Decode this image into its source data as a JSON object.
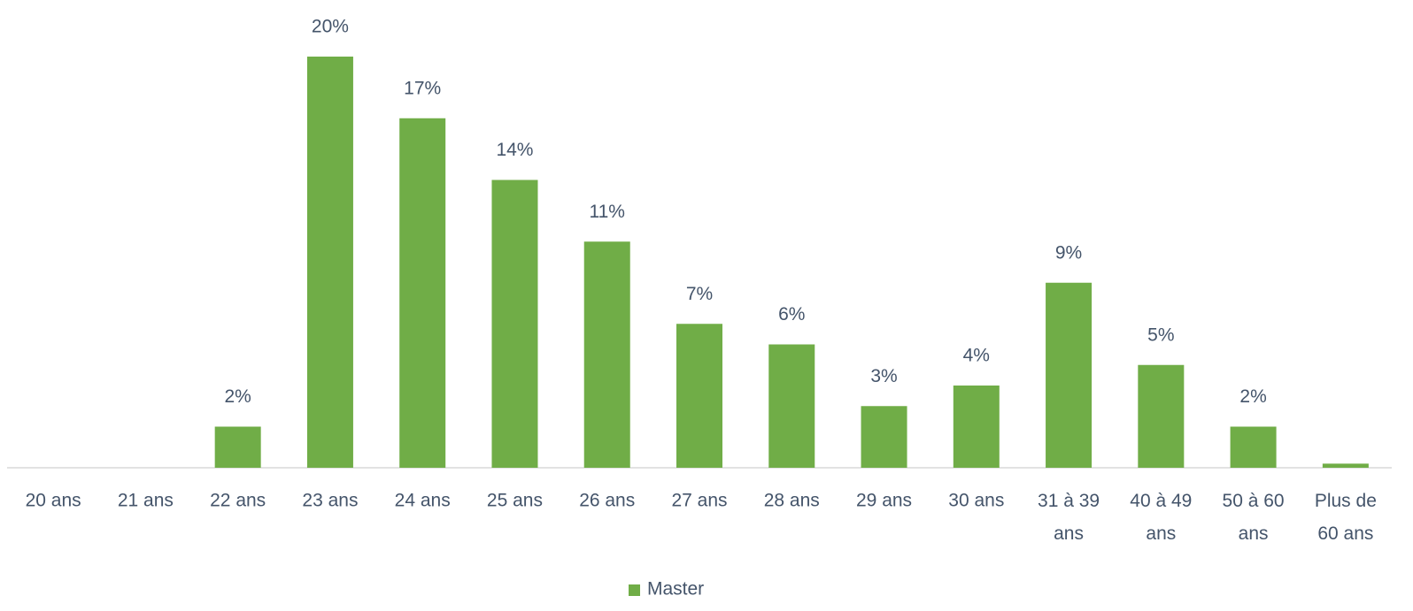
{
  "chart_data": {
    "type": "bar",
    "categories": [
      "20 ans",
      "21 ans",
      "22 ans",
      "23 ans",
      "24 ans",
      "25 ans",
      "26 ans",
      "27 ans",
      "28 ans",
      "29 ans",
      "30 ans",
      "31 à 39 ans",
      "40 à 49 ans",
      "50 à 60 ans",
      "Plus de 60 ans"
    ],
    "series": [
      {
        "name": "Master",
        "color": "#70ad47",
        "values": [
          0,
          0,
          2,
          20,
          17,
          14,
          11,
          7,
          6,
          3,
          4,
          9,
          5,
          2,
          0.2
        ],
        "value_labels": [
          null,
          null,
          "2%",
          "20%",
          "17%",
          "14%",
          "11%",
          "7%",
          "6%",
          "3%",
          "4%",
          "9%",
          "5%",
          "2%",
          null
        ]
      }
    ],
    "ylim": [
      0,
      20
    ],
    "legend": "bottom"
  }
}
